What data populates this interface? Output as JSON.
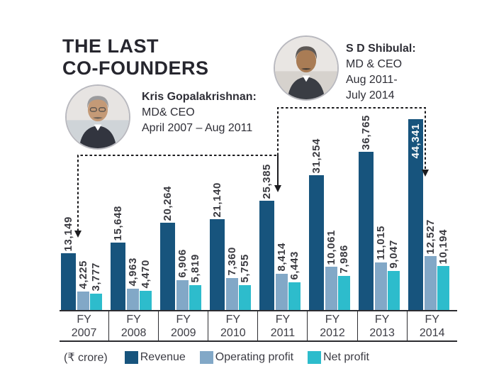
{
  "title": {
    "line1": "THE LAST",
    "line2": "CO-FOUNDERS"
  },
  "people": [
    {
      "name": "Kris Gopalakrishnan:",
      "lines": [
        "MD& CEO",
        "April 2007 – Aug 2011"
      ],
      "photo_icon": "kris-portrait-icon"
    },
    {
      "name": "S D Shibulal:",
      "lines": [
        "MD & CEO",
        "Aug 2011-",
        "July 2014"
      ],
      "photo_icon": "shibulal-portrait-icon"
    }
  ],
  "chart_data": {
    "type": "bar",
    "title": "THE LAST CO-FOUNDERS",
    "unit_label": "(₹ crore)",
    "fy_prefix": "FY",
    "categories": [
      "2007",
      "2008",
      "2009",
      "2010",
      "2011",
      "2012",
      "2013",
      "2014"
    ],
    "series": [
      {
        "name": "Revenue",
        "color": "#17547d",
        "values": [
          13149,
          15648,
          20264,
          21140,
          25385,
          31254,
          36765,
          44341
        ],
        "labels": [
          "13,149",
          "15,648",
          "20,264",
          "21,140",
          "25,385",
          "31,254",
          "36,765",
          "44,341"
        ]
      },
      {
        "name": "Operating profit",
        "color": "#82a8c7",
        "values": [
          4225,
          4963,
          6906,
          7360,
          8414,
          10061,
          11015,
          12527
        ],
        "labels": [
          "4,225",
          "4,963",
          "6,906",
          "7,360",
          "8,414",
          "10,061",
          "11,015",
          "12,527"
        ]
      },
      {
        "name": "Net profit",
        "color": "#2dbccc",
        "values": [
          3777,
          4470,
          5819,
          5755,
          6443,
          7986,
          9047,
          10194
        ],
        "labels": [
          "3,777",
          "4,470",
          "5,819",
          "5,755",
          "6,443",
          "7,986",
          "9,047",
          "10,194"
        ]
      }
    ],
    "ylim": [
      0,
      46000
    ],
    "grid": false,
    "legend_position": "bottom",
    "value_label_inside": {
      "series": 0,
      "index": 7
    },
    "annotations": [
      {
        "for": "Kris Gopalakrishnan",
        "style": "dashed-bracket",
        "points_to": [
          "FY 2007",
          "FY 2011"
        ]
      },
      {
        "for": "S D Shibulal",
        "style": "dashed-bracket",
        "points_to": [
          "FY 2011",
          "FY 2014"
        ]
      }
    ]
  }
}
